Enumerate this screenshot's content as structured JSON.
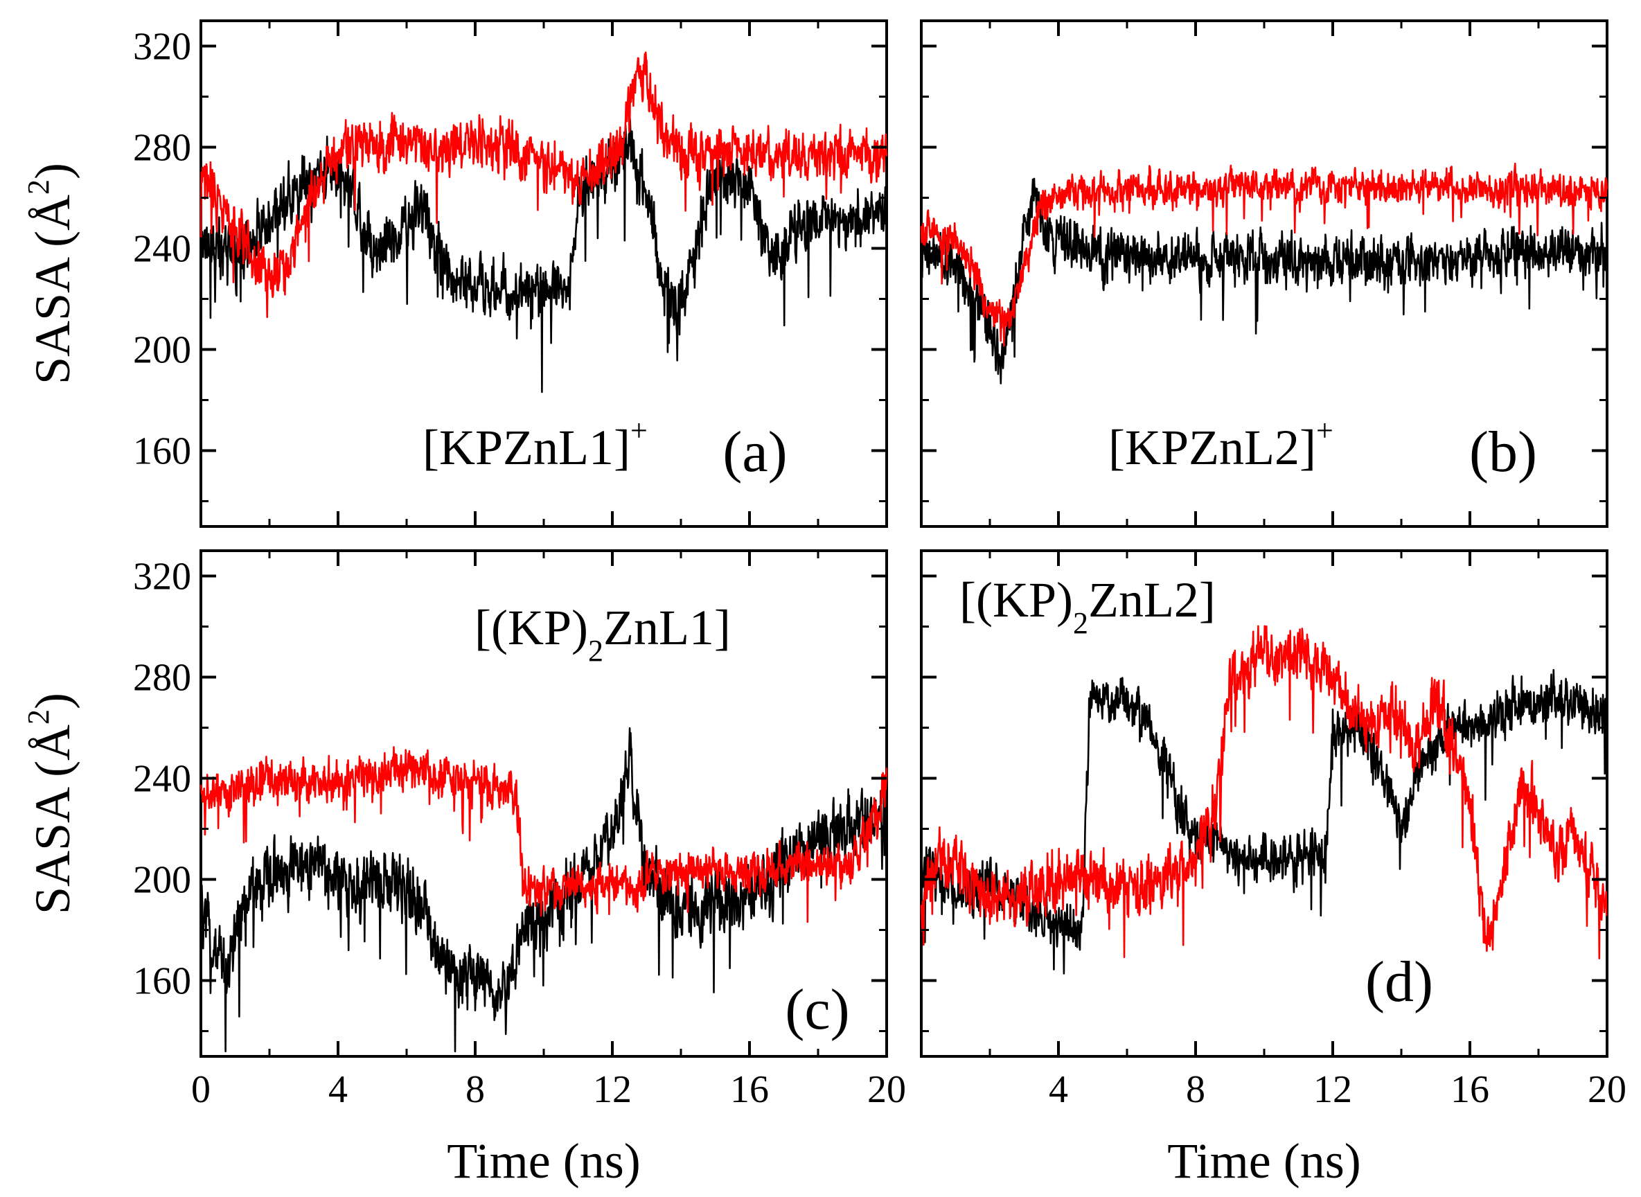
{
  "figure": {
    "x_title": "Time  (ns)",
    "y_title_main": "SASA  (Å",
    "y_title_sup": "2",
    "y_title_close": ")"
  },
  "colors": {
    "series_black": "#000000",
    "series_red": "#ff0000",
    "axis": "#000000",
    "background": "#ffffff"
  },
  "chart_data": [
    {
      "type": "line",
      "panel": "a",
      "panel_label": "(a)",
      "compound_main": "[KPZnL1]",
      "compound_sup": "+",
      "compound_sub": "",
      "compound_tail": "",
      "xlim": [
        0,
        20
      ],
      "ylim": [
        130,
        330
      ],
      "xticks": [
        0,
        4,
        8,
        12,
        16,
        20
      ],
      "yticks": [
        160,
        200,
        240,
        280,
        320
      ],
      "series": [
        {
          "name": "black",
          "color": "#000000",
          "noise": 14,
          "points": [
            [
              0,
              245
            ],
            [
              0.5,
              240
            ],
            [
              1,
              235
            ],
            [
              1.5,
              245
            ],
            [
              2,
              250
            ],
            [
              3,
              265
            ],
            [
              4,
              275
            ],
            [
              4.5,
              260
            ],
            [
              5,
              240
            ],
            [
              6,
              250
            ],
            [
              6.5,
              255
            ],
            [
              7,
              235
            ],
            [
              8,
              225
            ],
            [
              9,
              222
            ],
            [
              10,
              225
            ],
            [
              10.8,
              225
            ],
            [
              11,
              262
            ],
            [
              12,
              270
            ],
            [
              12.5,
              285
            ],
            [
              13,
              262
            ],
            [
              13.5,
              225
            ],
            [
              14,
              215
            ],
            [
              14.5,
              245
            ],
            [
              15,
              270
            ],
            [
              16,
              265
            ],
            [
              16.5,
              240
            ],
            [
              17,
              238
            ],
            [
              18,
              255
            ],
            [
              19,
              250
            ],
            [
              20,
              255
            ]
          ]
        },
        {
          "name": "red",
          "color": "#ff0000",
          "noise": 12,
          "points": [
            [
              0,
              268
            ],
            [
              0.5,
              262
            ],
            [
              1,
              248
            ],
            [
              1.5,
              235
            ],
            [
              2,
              228
            ],
            [
              2.5,
              232
            ],
            [
              3,
              252
            ],
            [
              3.5,
              270
            ],
            [
              4,
              278
            ],
            [
              5,
              282
            ],
            [
              6,
              280
            ],
            [
              7,
              278
            ],
            [
              8,
              282
            ],
            [
              9,
              280
            ],
            [
              10,
              275
            ],
            [
              11,
              268
            ],
            [
              12,
              272
            ],
            [
              12.5,
              292
            ],
            [
              12.7,
              310
            ],
            [
              13,
              310
            ],
            [
              13.4,
              288
            ],
            [
              14,
              280
            ],
            [
              15,
              278
            ],
            [
              16,
              277
            ],
            [
              17,
              277
            ],
            [
              18,
              278
            ],
            [
              19,
              276
            ],
            [
              20,
              276
            ]
          ]
        }
      ]
    },
    {
      "type": "line",
      "panel": "b",
      "panel_label": "(b)",
      "compound_main": "[KPZnL2]",
      "compound_sup": "+",
      "compound_sub": "",
      "compound_tail": "",
      "xlim": [
        0,
        20
      ],
      "ylim": [
        130,
        330
      ],
      "xticks": [
        0,
        4,
        8,
        12,
        16,
        20
      ],
      "yticks": [
        160,
        200,
        240,
        280,
        320
      ],
      "series": [
        {
          "name": "black",
          "color": "#000000",
          "noise": 12,
          "points": [
            [
              0,
              238
            ],
            [
              1,
              232
            ],
            [
              1.5,
              222
            ],
            [
              2,
              210
            ],
            [
              2.3,
              195
            ],
            [
              2.6,
              210
            ],
            [
              3,
              248
            ],
            [
              3.3,
              262
            ],
            [
              3.6,
              245
            ],
            [
              5,
              238
            ],
            [
              8,
              236
            ],
            [
              11,
              236
            ],
            [
              14,
              236
            ],
            [
              17,
              238
            ],
            [
              20,
              240
            ]
          ]
        },
        {
          "name": "red",
          "color": "#ff0000",
          "noise": 8,
          "points": [
            [
              0,
              248
            ],
            [
              1,
              243
            ],
            [
              1.5,
              232
            ],
            [
              2,
              215
            ],
            [
              2.5,
              212
            ],
            [
              3,
              232
            ],
            [
              3.4,
              255
            ],
            [
              4,
              262
            ],
            [
              6,
              264
            ],
            [
              10,
              264
            ],
            [
              14,
              265
            ],
            [
              17,
              264
            ],
            [
              20,
              262
            ]
          ]
        }
      ]
    },
    {
      "type": "line",
      "panel": "c",
      "panel_label": "(c)",
      "compound_main": "[(KP)",
      "compound_sup": "",
      "compound_sub": "2",
      "compound_tail": "ZnL1]",
      "xlim": [
        0,
        20
      ],
      "ylim": [
        130,
        330
      ],
      "xticks": [
        0,
        4,
        8,
        12,
        16,
        20
      ],
      "yticks": [
        160,
        200,
        240,
        280,
        320
      ],
      "series": [
        {
          "name": "black",
          "color": "#000000",
          "noise": 16,
          "points": [
            [
              0,
              185
            ],
            [
              0.7,
              165
            ],
            [
              1.5,
              195
            ],
            [
              2.5,
              205
            ],
            [
              3.5,
              205
            ],
            [
              4.5,
              195
            ],
            [
              5.5,
              200
            ],
            [
              6.5,
              190
            ],
            [
              7,
              168
            ],
            [
              8,
              160
            ],
            [
              9,
              160
            ],
            [
              9.5,
              182
            ],
            [
              10.5,
              188
            ],
            [
              11.5,
              205
            ],
            [
              12,
              220
            ],
            [
              12.5,
              250
            ],
            [
              12.8,
              215
            ],
            [
              13.5,
              190
            ],
            [
              14.5,
              188
            ],
            [
              15.5,
              192
            ],
            [
              16.5,
              200
            ],
            [
              17.5,
              212
            ],
            [
              18.5,
              220
            ],
            [
              19.5,
              225
            ],
            [
              20,
              225
            ]
          ]
        },
        {
          "name": "red",
          "color": "#ff0000",
          "noise": 10,
          "points": [
            [
              0,
              232
            ],
            [
              1,
              235
            ],
            [
              2,
              240
            ],
            [
              3,
              238
            ],
            [
              4,
              240
            ],
            [
              5,
              240
            ],
            [
              6,
              243
            ],
            [
              7,
              240
            ],
            [
              8,
              238
            ],
            [
              9,
              236
            ],
            [
              9.2,
              232
            ],
            [
              9.4,
              200
            ],
            [
              10,
              195
            ],
            [
              11,
              198
            ],
            [
              12,
              200
            ],
            [
              12.5,
              193
            ],
            [
              13,
              200
            ],
            [
              14,
              203
            ],
            [
              15,
              205
            ],
            [
              16,
              203
            ],
            [
              17,
              205
            ],
            [
              18,
              207
            ],
            [
              19,
              205
            ],
            [
              19.5,
              220
            ],
            [
              20,
              240
            ]
          ]
        }
      ]
    },
    {
      "type": "line",
      "panel": "d",
      "panel_label": "(d)",
      "compound_main": "[(KP)",
      "compound_sup": "",
      "compound_sub": "2",
      "compound_tail": "ZnL2]",
      "xlim": [
        0,
        20
      ],
      "ylim": [
        130,
        330
      ],
      "xticks": [
        4,
        8,
        12,
        16,
        20
      ],
      "yticks": [
        160,
        200,
        240,
        280,
        320
      ],
      "series": [
        {
          "name": "black",
          "color": "#000000",
          "noise": 12,
          "points": [
            [
              0,
              205
            ],
            [
              1,
              195
            ],
            [
              2,
              198
            ],
            [
              3,
              190
            ],
            [
              4,
              180
            ],
            [
              4.7,
              182
            ],
            [
              4.9,
              268
            ],
            [
              5.5,
              272
            ],
            [
              6.5,
              268
            ],
            [
              7,
              250
            ],
            [
              7.5,
              228
            ],
            [
              8,
              218
            ],
            [
              9,
              210
            ],
            [
              10,
              208
            ],
            [
              11,
              210
            ],
            [
              11.8,
              210
            ],
            [
              12,
              258
            ],
            [
              13,
              258
            ],
            [
              13.5,
              238
            ],
            [
              14,
              222
            ],
            [
              14.5,
              240
            ],
            [
              15.5,
              260
            ],
            [
              16.5,
              262
            ],
            [
              17,
              268
            ],
            [
              18,
              270
            ],
            [
              19,
              270
            ],
            [
              20,
              268
            ]
          ]
        },
        {
          "name": "red",
          "color": "#ff0000",
          "noise": 14,
          "points": [
            [
              0,
              190
            ],
            [
              0.5,
              210
            ],
            [
              1,
              205
            ],
            [
              2,
              190
            ],
            [
              3,
              195
            ],
            [
              4,
              200
            ],
            [
              5,
              200
            ],
            [
              6,
              198
            ],
            [
              7,
              200
            ],
            [
              8,
              210
            ],
            [
              8.6,
              230
            ],
            [
              9,
              282
            ],
            [
              10,
              288
            ],
            [
              11,
              290
            ],
            [
              12,
              282
            ],
            [
              12.5,
              270
            ],
            [
              13,
              258
            ],
            [
              13.5,
              268
            ],
            [
              14,
              262
            ],
            [
              14.5,
              250
            ],
            [
              15,
              272
            ],
            [
              15.5,
              252
            ],
            [
              16,
              230
            ],
            [
              16.5,
              178
            ],
            [
              17,
              205
            ],
            [
              17.5,
              240
            ],
            [
              18,
              228
            ],
            [
              18.5,
              210
            ],
            [
              19,
              218
            ],
            [
              19.5,
              205
            ],
            [
              20,
              190
            ]
          ]
        }
      ]
    }
  ]
}
